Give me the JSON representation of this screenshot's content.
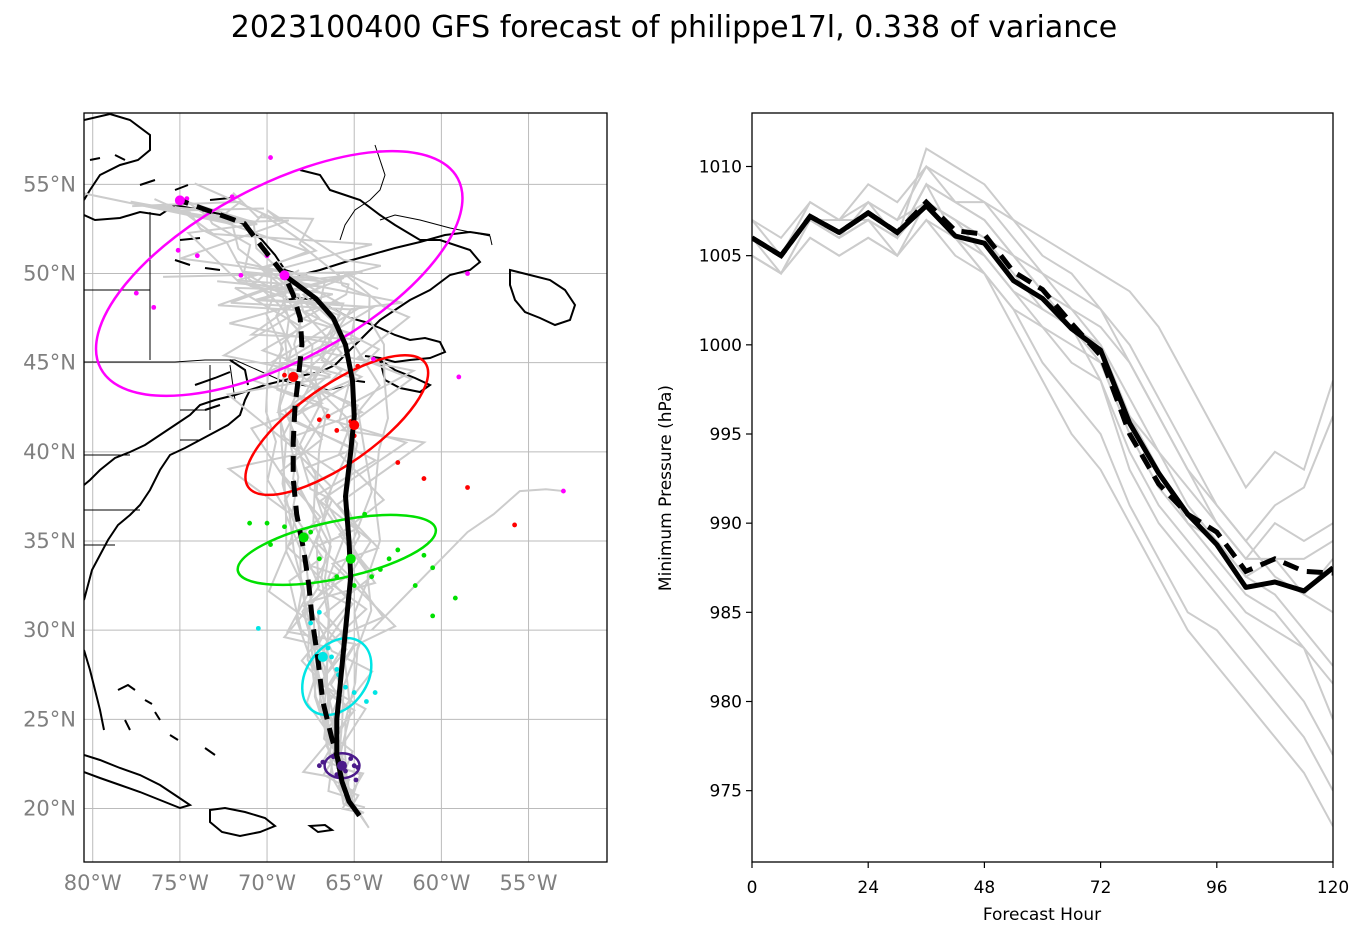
{
  "title": "2023100400 GFS forecast of philippe17l, 0.338 of variance",
  "colors": {
    "ensemble": "#cccccc",
    "mean": "#000000",
    "grid": "#bbbbbb",
    "coast": "#000000",
    "ellipses": [
      "#4b1a8a",
      "#00e5e5",
      "#00e000",
      "#ff0000",
      "#ff00ff"
    ]
  },
  "chart_data": [
    {
      "type": "map",
      "name": "track-map",
      "xlim": [
        -80.5,
        -50.5
      ],
      "ylim": [
        17,
        59
      ],
      "xticks": [
        -80,
        -75,
        -70,
        -65,
        -60,
        -55
      ],
      "xtick_labels": [
        "80°W",
        "75°W",
        "70°W",
        "65°W",
        "60°W",
        "55°W"
      ],
      "yticks": [
        20,
        25,
        30,
        35,
        40,
        45,
        50,
        55
      ],
      "ytick_labels": [
        "20°N",
        "25°N",
        "30°N",
        "35°N",
        "40°N",
        "45°N",
        "50°N",
        "55°N"
      ],
      "mean_track_solid": [
        [
          -64.7,
          19.6
        ],
        [
          -65.3,
          20.4
        ],
        [
          -65.7,
          21.5
        ],
        [
          -66.0,
          23.0
        ],
        [
          -66.0,
          25.0
        ],
        [
          -65.8,
          27.0
        ],
        [
          -65.6,
          29.0
        ],
        [
          -65.4,
          31.0
        ],
        [
          -65.2,
          33.0
        ],
        [
          -65.3,
          35.0
        ],
        [
          -65.5,
          37.5
        ],
        [
          -65.2,
          40.0
        ],
        [
          -65.0,
          42.0
        ],
        [
          -65.1,
          44.0
        ],
        [
          -65.5,
          46.0
        ],
        [
          -66.2,
          47.5
        ],
        [
          -67.2,
          48.6
        ],
        [
          -68.3,
          49.4
        ],
        [
          -69.0,
          49.9
        ]
      ],
      "mean_track_dashed": [
        [
          -65.8,
          22.3
        ],
        [
          -66.3,
          24.0
        ],
        [
          -66.8,
          26.0
        ],
        [
          -67.1,
          28.5
        ],
        [
          -67.4,
          30.5
        ],
        [
          -67.6,
          32.5
        ],
        [
          -67.9,
          34.5
        ],
        [
          -68.3,
          36.5
        ],
        [
          -68.5,
          38.5
        ],
        [
          -68.5,
          40.5
        ],
        [
          -68.4,
          42.5
        ],
        [
          -68.2,
          44.2
        ],
        [
          -68.0,
          46.0
        ],
        [
          -68.1,
          47.5
        ],
        [
          -68.5,
          48.8
        ],
        [
          -69.0,
          49.9
        ],
        [
          -70.3,
          51.5
        ],
        [
          -71.3,
          52.8
        ],
        [
          -73.0,
          53.4
        ],
        [
          -75.0,
          54.1
        ]
      ],
      "ellipses": [
        {
          "cx": -65.7,
          "cy": 22.4,
          "rx": 1.0,
          "ry": 0.7,
          "angle": 0
        },
        {
          "cx": -66.0,
          "cy": 27.4,
          "rx": 2.4,
          "ry": 1.7,
          "angle": -55
        },
        {
          "cx": -66.0,
          "cy": 34.5,
          "rx": 5.8,
          "ry": 1.6,
          "angle": -12
        },
        {
          "cx": -66.0,
          "cy": 41.5,
          "rx": 6.2,
          "ry": 2.2,
          "angle": -35
        },
        {
          "cx": -69.3,
          "cy": 50.0,
          "rx": 11.6,
          "ry": 4.9,
          "angle": -28
        }
      ],
      "scatter_points": [
        {
          "group": 0,
          "points": [
            [
              -66.8,
              22.6
            ],
            [
              -66.2,
              22.9
            ],
            [
              -65.5,
              22.1
            ],
            [
              -65.0,
              22.4
            ],
            [
              -64.9,
              21.6
            ],
            [
              -66.0,
              21.9
            ],
            [
              -65.2,
              22.8
            ],
            [
              -64.8,
              22.3
            ],
            [
              -67.0,
              22.4
            ],
            [
              -65.7,
              21.7
            ]
          ]
        },
        {
          "group": 1,
          "points": [
            [
              -70.5,
              30.1
            ],
            [
              -67.0,
              31.0
            ],
            [
              -66.5,
              29.0
            ],
            [
              -66.0,
              27.8
            ],
            [
              -65.8,
              27.3
            ],
            [
              -65.0,
              26.5
            ],
            [
              -64.3,
              26.0
            ],
            [
              -63.8,
              26.5
            ],
            [
              -65.5,
              26.8
            ],
            [
              -66.3,
              28.5
            ],
            [
              -67.5,
              30.4
            ],
            [
              -65.9,
              27.5
            ]
          ]
        },
        {
          "group": 2,
          "points": [
            [
              -71.0,
              36.0
            ],
            [
              -70.0,
              36.0
            ],
            [
              -69.8,
              34.8
            ],
            [
              -69.0,
              35.8
            ],
            [
              -67.5,
              35.5
            ],
            [
              -67.0,
              34.0
            ],
            [
              -66.0,
              33.0
            ],
            [
              -65.0,
              32.5
            ],
            [
              -64.0,
              33.0
            ],
            [
              -63.0,
              34.0
            ],
            [
              -62.5,
              34.5
            ],
            [
              -61.5,
              32.5
            ],
            [
              -60.5,
              30.8
            ],
            [
              -59.2,
              31.8
            ],
            [
              -61.0,
              34.2
            ],
            [
              -60.5,
              33.5
            ],
            [
              -63.5,
              33.4
            ],
            [
              -64.4,
              36.5
            ]
          ]
        },
        {
          "group": 3,
          "points": [
            [
              -69.0,
              44.3
            ],
            [
              -67.0,
              41.8
            ],
            [
              -66.0,
              41.2
            ],
            [
              -65.2,
              41.7
            ],
            [
              -65.0,
              40.9
            ],
            [
              -62.5,
              39.4
            ],
            [
              -61.0,
              38.5
            ],
            [
              -58.5,
              38.0
            ],
            [
              -55.8,
              35.9
            ],
            [
              -64.8,
              44.8
            ],
            [
              -66.5,
              42.0
            ]
          ]
        },
        {
          "group": 4,
          "points": [
            [
              -69.8,
              56.5
            ],
            [
              -74.6,
              54.2
            ],
            [
              -77.5,
              48.9
            ],
            [
              -76.5,
              48.1
            ],
            [
              -75.1,
              51.3
            ],
            [
              -74.0,
              51.0
            ],
            [
              -71.5,
              49.9
            ],
            [
              -72.0,
              54.3
            ],
            [
              -70.0,
              51.0
            ],
            [
              -63.9,
              45.2
            ],
            [
              -59.0,
              44.2
            ],
            [
              -58.5,
              50.0
            ],
            [
              -53.0,
              37.8
            ]
          ]
        }
      ],
      "mean_markers": [
        [
          -65.7,
          22.4
        ],
        [
          -66.8,
          28.5
        ],
        [
          -67.9,
          35.2
        ],
        [
          -65.2,
          34.0
        ],
        [
          -68.5,
          44.2
        ],
        [
          -65.0,
          41.5
        ],
        [
          -69.0,
          49.9
        ],
        [
          -75.0,
          54.1
        ]
      ]
    },
    {
      "type": "line",
      "name": "pressure-chart",
      "xlabel": "Forecast Hour",
      "ylabel": "Minimum Pressure (hPa)",
      "xlim": [
        0,
        120
      ],
      "ylim": [
        971,
        1013
      ],
      "xticks": [
        0,
        24,
        48,
        72,
        96,
        120
      ],
      "yticks": [
        975,
        980,
        985,
        990,
        995,
        1000,
        1005,
        1010
      ],
      "x": [
        0,
        6,
        12,
        18,
        24,
        30,
        36,
        42,
        48,
        54,
        60,
        66,
        72,
        78,
        84,
        90,
        96,
        102,
        108,
        114,
        120
      ],
      "mean_solid": [
        1006.0,
        1005.0,
        1007.2,
        1006.3,
        1007.4,
        1006.3,
        1007.8,
        1006.1,
        1005.7,
        1003.6,
        1002.6,
        1000.9,
        999.7,
        995.6,
        992.8,
        990.5,
        988.8,
        986.4,
        986.7,
        986.2,
        987.5
      ],
      "mean_dashed": [
        1006.0,
        1005.0,
        1007.2,
        1006.3,
        1007.4,
        1006.3,
        1008.0,
        1006.4,
        1006.2,
        1004.1,
        1003.1,
        1001.2,
        999.4,
        995.0,
        992.2,
        990.5,
        989.5,
        987.3,
        988.0,
        987.3,
        987.2
      ],
      "ensemble_members": [
        [
          1006,
          1005,
          1007,
          1006,
          1007,
          1006,
          1009,
          1008,
          1007,
          1005,
          1003,
          1001,
          1000,
          997,
          994,
          991,
          989,
          987,
          986,
          984,
          982
        ],
        [
          1007,
          1006,
          1008,
          1007,
          1008,
          1007,
          1010,
          1009,
          1008,
          1006,
          1004,
          1002,
          1001,
          999,
          996,
          993,
          990,
          988,
          988,
          986,
          985
        ],
        [
          1005,
          1004,
          1006,
          1005,
          1006,
          1005,
          1007,
          1005,
          1004,
          1002,
          1001,
          999,
          998,
          994,
          991,
          989,
          987,
          985,
          984,
          983,
          981
        ],
        [
          1006,
          1005,
          1007,
          1006,
          1008,
          1006,
          1011,
          1010,
          1009,
          1007,
          1005,
          1004,
          1002,
          1000,
          997,
          994,
          991,
          989,
          987,
          986,
          988
        ],
        [
          1005,
          1004,
          1007,
          1007,
          1007,
          1006,
          1008,
          1007,
          1006,
          1004,
          1002,
          1001,
          998,
          993,
          990,
          988,
          986,
          984,
          982,
          980,
          977
        ],
        [
          1006,
          1005,
          1008,
          1007,
          1009,
          1008,
          1010,
          1008,
          1007,
          1005,
          1003,
          1002,
          1000,
          996,
          994,
          992,
          990,
          988,
          990,
          989,
          990
        ],
        [
          1007,
          1005,
          1007,
          1006,
          1007,
          1005,
          1007,
          1006,
          1004,
          1001,
          998,
          995,
          993,
          990,
          987,
          984,
          982,
          980,
          978,
          976,
          973
        ],
        [
          1006,
          1005,
          1007,
          1006,
          1007,
          1006,
          1009,
          1008,
          1008,
          1007,
          1006,
          1005,
          1004,
          1003,
          1001,
          998,
          995,
          992,
          994,
          993,
          998
        ],
        [
          1005,
          1004,
          1006,
          1005,
          1006,
          1005,
          1008,
          1007,
          1005,
          1003,
          1001,
          1000,
          999,
          996,
          993,
          990,
          988,
          986,
          985,
          983,
          979
        ],
        [
          1006,
          1005,
          1007,
          1006,
          1008,
          1007,
          1008,
          1007,
          1006,
          1005,
          1004,
          1003,
          1002,
          999,
          996,
          993,
          991,
          989,
          991,
          992,
          996
        ],
        [
          1006,
          1004,
          1007,
          1006,
          1007,
          1006,
          1009,
          1006,
          1004,
          1002,
          999,
          997,
          995,
          991,
          988,
          985,
          984,
          982,
          980,
          978,
          975
        ],
        [
          1006,
          1005,
          1007,
          1006,
          1007,
          1006,
          1008,
          1006,
          1005,
          1003,
          1002,
          1001,
          999,
          995,
          992,
          990,
          989,
          987,
          988,
          988,
          989
        ]
      ]
    }
  ]
}
